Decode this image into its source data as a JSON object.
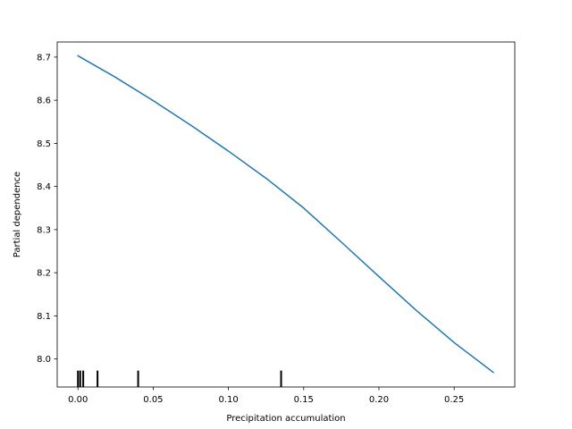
{
  "chart_data": {
    "type": "line",
    "title": "",
    "xlabel": "Precipitation accumulation",
    "ylabel": "Partial dependence",
    "xlim": [
      -0.0138,
      0.2903
    ],
    "ylim": [
      7.935,
      8.735
    ],
    "grid": false,
    "x_ticks": [
      0.0,
      0.05,
      0.1,
      0.15,
      0.2,
      0.25
    ],
    "x_tick_labels": [
      "0.00",
      "0.05",
      "0.10",
      "0.15",
      "0.20",
      "0.25"
    ],
    "y_ticks": [
      8.0,
      8.1,
      8.2,
      8.3,
      8.4,
      8.5,
      8.6,
      8.7
    ],
    "y_tick_labels": [
      "8.0",
      "8.1",
      "8.2",
      "8.3",
      "8.4",
      "8.5",
      "8.6",
      "8.7"
    ],
    "series": [
      {
        "color": "#1f77b4",
        "x": [
          0.0,
          0.025,
          0.05,
          0.075,
          0.1,
          0.125,
          0.15,
          0.175,
          0.2,
          0.225,
          0.25,
          0.276
        ],
        "y": [
          8.703,
          8.653,
          8.599,
          8.542,
          8.482,
          8.419,
          8.35,
          8.271,
          8.191,
          8.112,
          8.038,
          7.969
        ]
      }
    ],
    "rug": {
      "color": "#000000",
      "x": [
        0.0,
        0.0015,
        0.0035,
        0.013,
        0.04,
        0.135
      ],
      "y_from": 7.935,
      "y_to": 7.973
    }
  }
}
